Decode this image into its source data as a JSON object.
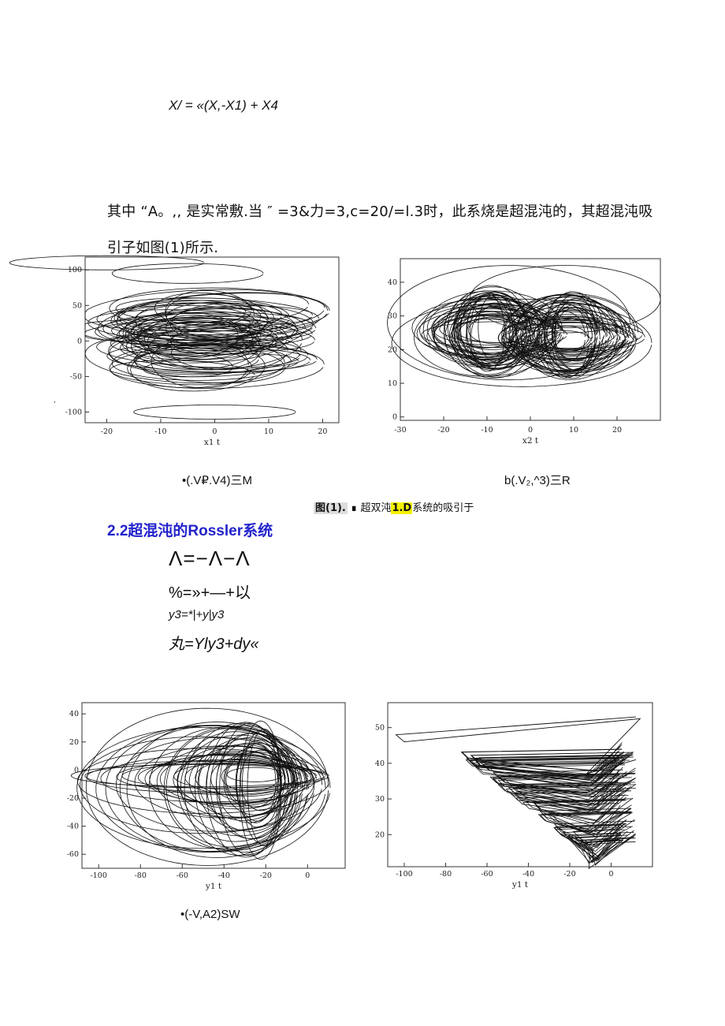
{
  "equation_top": "X/ = «(X,-X1) + X4",
  "paragraph": {
    "line1": "其中 “A。,, 是实常敷.当 ″ =3&力=3,c=20/=l.3时，此系烧是超混沌的，其超混沌吸",
    "line2": "引子如图(1)所示."
  },
  "stray_mark": "-",
  "chart_data": [
    {
      "type": "line",
      "id": "a",
      "xlabel": "x1 t",
      "ylabel": "",
      "xlim": [
        -24,
        23
      ],
      "ylim": [
        -115,
        118
      ],
      "xticks": [
        "-20",
        "-10",
        "0",
        "10",
        "20"
      ],
      "xtick_values": [
        -20,
        -10,
        0,
        10,
        20
      ],
      "yticks": [
        "100",
        "50",
        "0",
        "-50",
        "-100"
      ],
      "ytick_values": [
        100,
        50,
        0,
        -50,
        -100
      ],
      "attractor": {
        "cx": 0,
        "cy": 0,
        "rx_min": 10,
        "rx_max": 21,
        "ry_min": 20,
        "ry_max": 55,
        "spread_y": 60
      },
      "caption": "•(.V₽.V4)三M"
    },
    {
      "type": "line",
      "id": "b",
      "xlabel": "x2 t",
      "ylabel": "",
      "xlim": [
        -30,
        30
      ],
      "ylim": [
        -1,
        47
      ],
      "xticks": [
        "-30",
        "-20",
        "-10",
        "0",
        "10",
        "20"
      ],
      "xtick_values": [
        -30,
        -20,
        -10,
        0,
        10,
        20
      ],
      "yticks": [
        "40",
        "30",
        "20",
        "10",
        "0"
      ],
      "ytick_values": [
        40,
        30,
        20,
        10,
        0
      ],
      "caption": "b(.V₂,^3)三R"
    },
    {
      "type": "line",
      "id": "c",
      "xlabel": "y1 t",
      "ylabel": "",
      "xlim": [
        -108,
        18
      ],
      "ylim": [
        -70,
        48
      ],
      "xticks": [
        "-100",
        "-80",
        "-60",
        "-40",
        "-20",
        "0"
      ],
      "xtick_values": [
        -100,
        -80,
        -60,
        -40,
        -20,
        0
      ],
      "yticks": [
        "40",
        "20",
        "0",
        "-20",
        "-40",
        "-60"
      ],
      "ytick_values": [
        40,
        20,
        0,
        -20,
        -40,
        -60
      ],
      "caption": "•(-V,A2)SW"
    },
    {
      "type": "line",
      "id": "d",
      "xlabel": "y1 t",
      "ylabel": "",
      "xlim": [
        -108,
        20
      ],
      "ylim": [
        11,
        57
      ],
      "xticks": [
        "-100",
        "-80",
        "-60",
        "-40",
        "-20",
        "0"
      ],
      "xtick_values": [
        -100,
        -80,
        -60,
        -40,
        -20,
        0
      ],
      "yticks": [
        "50",
        "40",
        "30",
        "20"
      ],
      "ytick_values": [
        50,
        40,
        30,
        20
      ]
    }
  ],
  "figure_caption": {
    "lead": "图(1).",
    "mark": "∎",
    "pre": "超双沌",
    "highlight": "1.D",
    "post": "系统的吸引于"
  },
  "section_title": "2.2超混沌的Rossler系统",
  "rossler": {
    "eq1": "Λ=−Λ−Λ",
    "eq2": "%=»+—+以",
    "eq3": "y3=*|+y|y3",
    "eq4": "丸=Yly3+dy«"
  },
  "colors": {
    "ink": "#111111",
    "section": "#2222cc",
    "highlight": "#f4f000"
  }
}
